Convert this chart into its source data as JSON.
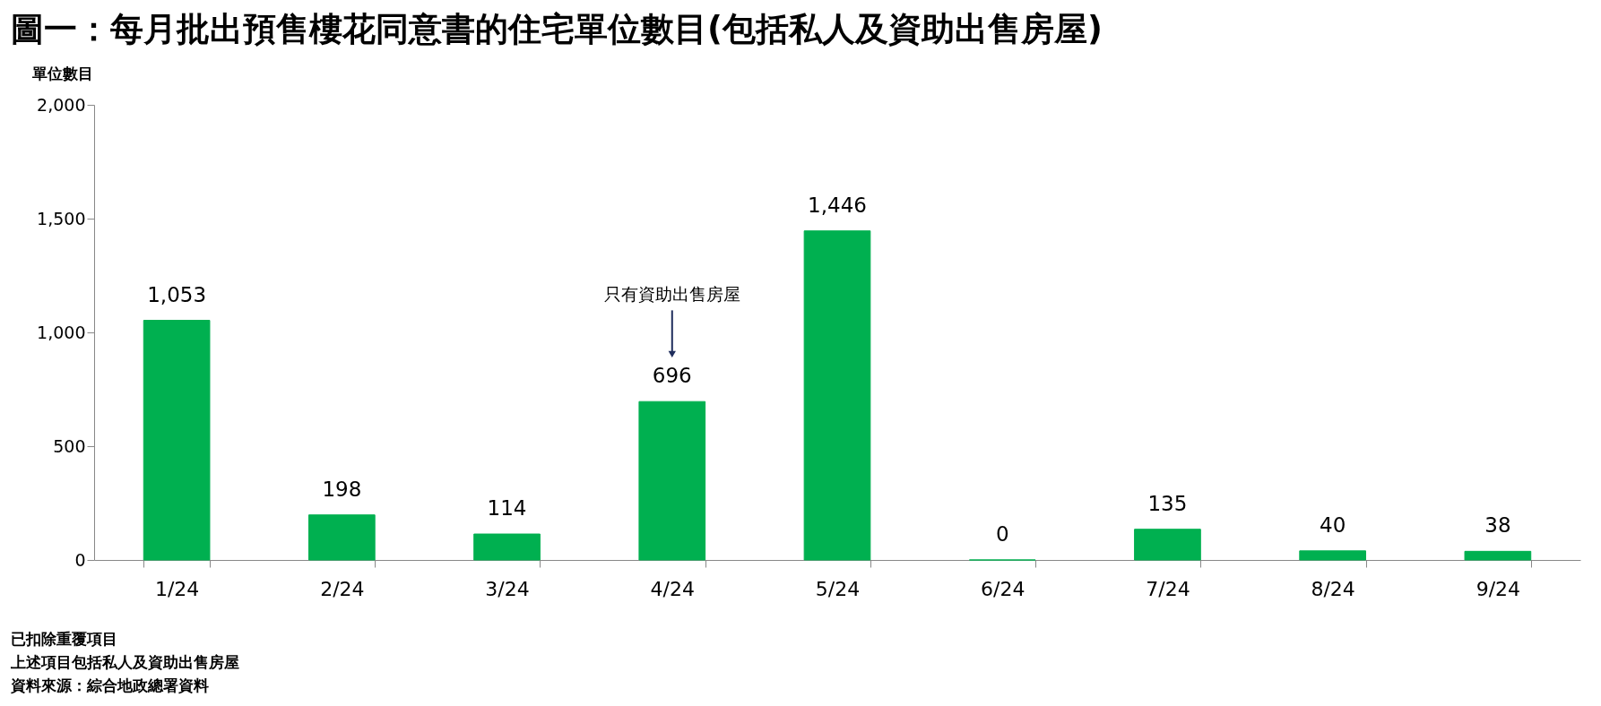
{
  "chart_data": {
    "type": "bar",
    "title": "圖一：每月批出預售樓花同意書的住宅單位數目(包括私人及資助出售房屋)",
    "ylabel": "單位數目",
    "categories": [
      "1/24",
      "2/24",
      "3/24",
      "4/24",
      "5/24",
      "6/24",
      "7/24",
      "8/24",
      "9/24"
    ],
    "values": [
      1053,
      198,
      114,
      696,
      1446,
      0,
      135,
      40,
      38
    ],
    "color": "#00b050",
    "ylim": [
      0,
      2000
    ],
    "yticks": [
      0,
      {
        "value": 500,
        "label": "500"
      },
      {
        "value": 1000,
        "label": "1,000"
      },
      {
        "value": 1500,
        "label": "1,500"
      },
      {
        "value": 2000,
        "label": "2,000"
      }
    ],
    "value_labels": [
      "1,053",
      "198",
      "114",
      "696",
      "1,446",
      "0",
      "135",
      "40",
      "38"
    ],
    "grid": false,
    "annotations": [
      {
        "text": "只有資助出售房屋",
        "x": "4/24",
        "y": 900
      },
      "已扣除重覆項目",
      "上述項目包括私人及資助出售房屋",
      "資料來源：綜合地政總署資料"
    ]
  }
}
